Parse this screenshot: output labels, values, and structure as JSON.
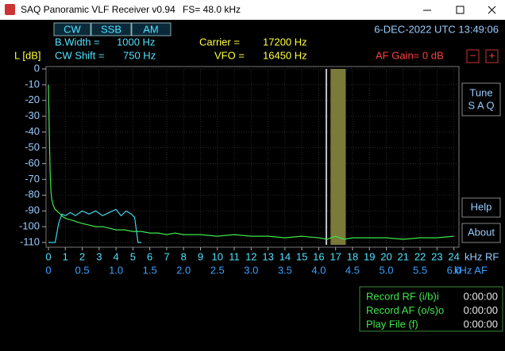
{
  "window": {
    "title": "SAQ Panoramic VLF Receiver v0.94",
    "fs": "FS=  48.0 kHz"
  },
  "modes": [
    "CW",
    "SSB",
    "AM"
  ],
  "info": {
    "bwidth_label": "B.Width  =",
    "bwidth_value": "1000 Hz",
    "shift_label": "CW  Shift =",
    "shift_value": "750 Hz",
    "carrier_label": "Carrier =",
    "carrier_value": "17200 Hz",
    "vfo_label": "VFO =",
    "vfo_value": "16450 Hz",
    "datetime": "6-DEC-2022 UTC 13:49:06",
    "af_gain": "AF Gain=   0 dB",
    "minus": "−",
    "plus": "+"
  },
  "buttons": {
    "tune": [
      "Tune",
      "S A Q"
    ],
    "help": "Help",
    "about": "About"
  },
  "spectrum": {
    "ylabel": "L [dB]",
    "rf_unit": "kHz RF",
    "af_unit": "kHz AF",
    "xlim": [
      0,
      24.3
    ],
    "ylim": [
      -113,
      1.5
    ],
    "aflim": [
      0,
      6.075
    ],
    "yticks": [
      0,
      -10,
      -20,
      -30,
      -40,
      -50,
      -60,
      -70,
      -80,
      -90,
      -100,
      -110
    ],
    "xticks": [
      0,
      1,
      2,
      3,
      4,
      5,
      6,
      7,
      8,
      9,
      10,
      11,
      12,
      13,
      14,
      15,
      16,
      17,
      18,
      19,
      20,
      21,
      22,
      23,
      24
    ],
    "afticks": [
      0,
      0.5,
      {
        "value": 1,
        "label": "1.0"
      },
      1.5,
      {
        "value": 2,
        "label": "2.0"
      },
      2.5,
      {
        "value": 3,
        "label": "3.0"
      },
      3.5,
      {
        "value": 4,
        "label": "4.0"
      },
      4.5,
      {
        "value": 5,
        "label": "5.0"
      },
      5.5,
      {
        "value": 6,
        "label": "6.0"
      }
    ],
    "grid": true,
    "markers": {
      "vfo": 16.45,
      "passband": [
        16.7,
        17.6
      ]
    },
    "series": [
      {
        "color": "#3ee84a",
        "x": [
          0,
          0.05,
          0.1,
          0.15,
          0.2,
          0.3,
          0.4,
          0.5,
          0.7,
          0.9,
          1.1,
          1.4,
          1.7,
          2,
          2.4,
          2.8,
          3.2,
          3.6,
          4,
          4.5,
          5,
          5.5,
          6,
          6.5,
          7,
          7.5,
          8,
          9,
          10,
          11,
          12,
          13,
          14,
          15,
          16,
          16.5,
          17,
          17.5,
          18,
          19,
          20,
          21,
          22,
          23,
          24
        ],
        "values": [
          -10,
          -40,
          -65,
          -78,
          -83,
          -87,
          -89,
          -90,
          -92,
          -94,
          -95,
          -96,
          -97,
          -98,
          -99,
          -100,
          -100,
          -101,
          -102,
          -102,
          -103,
          -103,
          -104,
          -104,
          -105,
          -104,
          -105,
          -105,
          -106,
          -105,
          -106,
          -106,
          -107,
          -106,
          -107,
          -108,
          -106,
          -108,
          -107,
          -107,
          -107,
          -108,
          -107,
          -107,
          -106
        ]
      },
      {
        "color": "#3fd6e8",
        "x": [
          0,
          0.4,
          0.6,
          0.8,
          1.0,
          1.3,
          1.6,
          2.0,
          2.4,
          2.8,
          3.2,
          3.6,
          4.0,
          4.3,
          4.6,
          4.9,
          5.1,
          5.3,
          5.5
        ],
        "values": [
          -110,
          -110,
          -98,
          -92,
          -93,
          -91,
          -93,
          -90,
          -92,
          -90,
          -93,
          -91,
          -89,
          -93,
          -90,
          -92,
          -94,
          -110,
          -110
        ]
      }
    ]
  },
  "status": {
    "rows": [
      [
        "Record  RF (i/b)i",
        "0:00:00"
      ],
      [
        "Record  AF (o/s)o",
        "0:00:00"
      ],
      [
        "Play File (f)",
        "0:00:00"
      ]
    ]
  }
}
